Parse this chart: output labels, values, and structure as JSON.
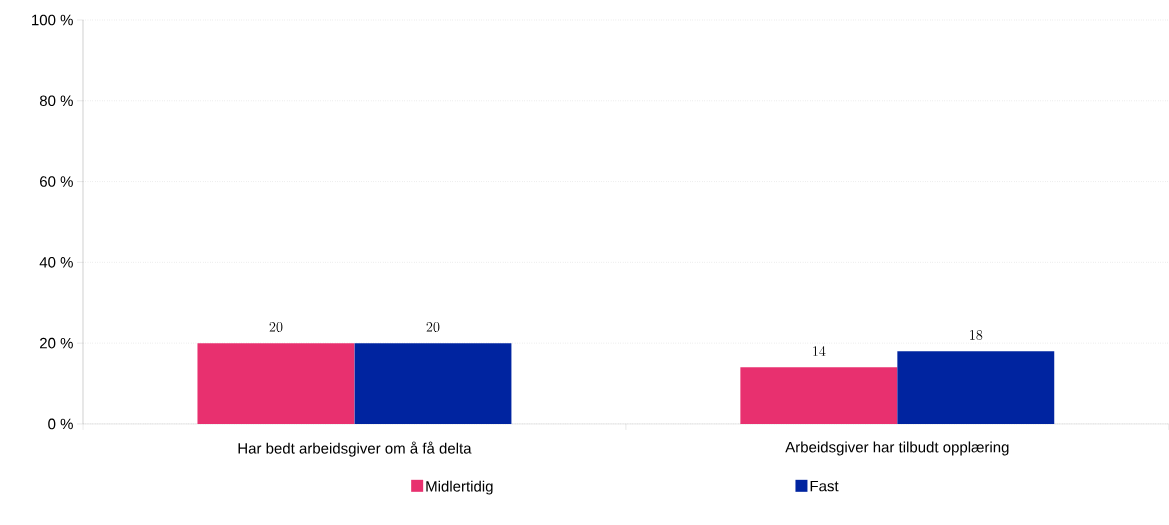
{
  "chart_data": {
    "type": "bar",
    "categories": [
      "Har bedt arbeidsgiver om å få delta",
      "Arbeidsgiver har tilbudt opplæring"
    ],
    "series": [
      {
        "name": "Midlertidig",
        "color": "#e8306f",
        "values": [
          20,
          14
        ]
      },
      {
        "name": "Fast",
        "color": "#0024a0",
        "values": [
          20,
          18
        ]
      }
    ],
    "ylim": [
      0,
      100
    ],
    "yticks": [
      {
        "value": 0,
        "label": "0 %"
      },
      {
        "value": 20,
        "label": "20 %"
      },
      {
        "value": 40,
        "label": "40 %"
      },
      {
        "value": 60,
        "label": "60 %"
      },
      {
        "value": 80,
        "label": "80 %"
      },
      {
        "value": 100,
        "label": "100 %"
      }
    ],
    "grid": "y",
    "legend": "bottom",
    "data_labels": true
  }
}
